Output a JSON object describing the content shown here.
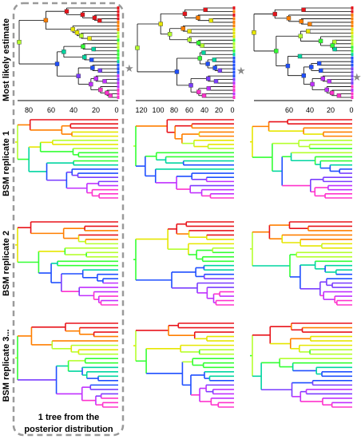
{
  "row_labels": [
    "Most likely estimate",
    "BSM replicate 1",
    "BSM replicate 2",
    "BSM replicate 3..."
  ],
  "axes": [
    {
      "ticks": [
        "80",
        "60",
        "40",
        "20",
        "0"
      ]
    },
    {
      "ticks": [
        "120",
        "100",
        "80",
        "60",
        "40",
        "20",
        "0"
      ]
    },
    {
      "ticks": [
        "60",
        "40",
        "20",
        "0"
      ]
    }
  ],
  "star_glyph": "★",
  "caption": {
    "line1": "1 tree from the",
    "line2": "posterior distribution"
  },
  "palette": [
    "#e8141b",
    "#ff7f00",
    "#e6e600",
    "#b5ff2e",
    "#33ff33",
    "#00d5a0",
    "#1f4fff",
    "#7a3dff",
    "#c030ff",
    "#ff33cc"
  ],
  "dashed_box_color": "#9a9a9a"
}
